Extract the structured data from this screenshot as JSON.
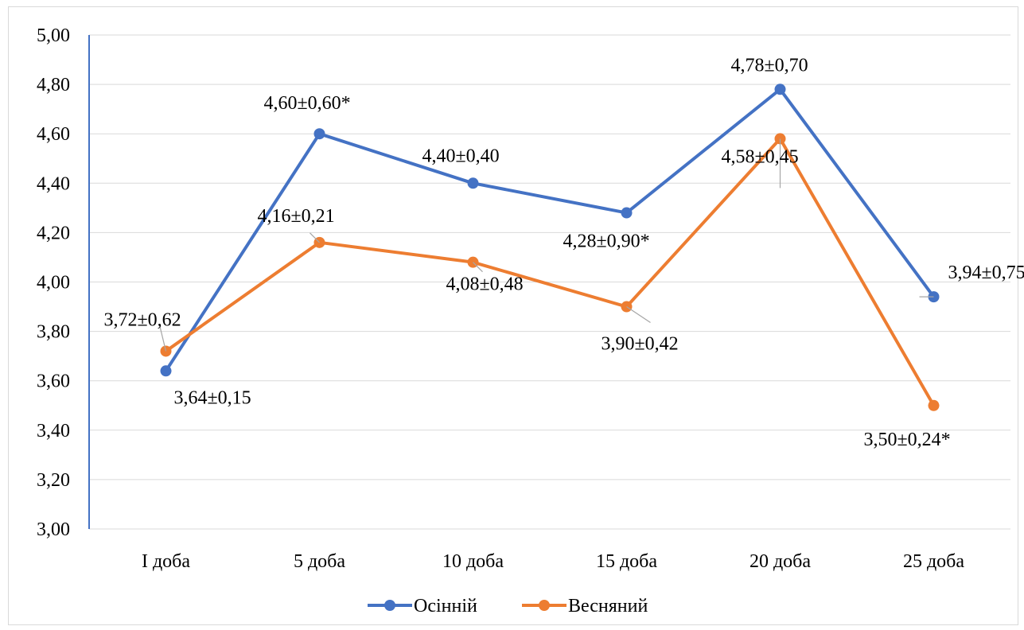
{
  "chart_data": {
    "type": "line",
    "categories": [
      "І доба",
      "5 доба",
      "10 доба",
      "15 доба",
      "20 доба",
      "25 доба"
    ],
    "ylim": [
      3.0,
      5.0
    ],
    "ytick_step": 0.2,
    "ytick_labels": [
      "3,00",
      "3,20",
      "3,40",
      "3,60",
      "3,80",
      "4,00",
      "4,20",
      "4,40",
      "4,60",
      "4,80",
      "5,00"
    ],
    "grid": true,
    "legend_position": "bottom",
    "series": [
      {
        "name": "Осінній",
        "color": "#4472C4",
        "values": [
          3.64,
          4.6,
          4.4,
          4.28,
          4.78,
          3.94
        ],
        "labels": [
          "3,64±0,15",
          "4,60±0,60*",
          "4,40±0,40",
          "4,28±0,90*",
          "4,78±0,70",
          "3,94±0,75"
        ]
      },
      {
        "name": "Весняний",
        "color": "#ED7D31",
        "values": [
          3.72,
          4.16,
          4.08,
          3.9,
          4.58,
          3.5
        ],
        "labels": [
          "3,72±0,62",
          "4,16±0,21",
          "4,08±0,48",
          "3,90±0,42",
          "4,58±0,45",
          "3,50±0,24*"
        ]
      }
    ]
  }
}
